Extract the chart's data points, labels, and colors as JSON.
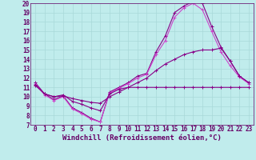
{
  "xlabel": "Windchill (Refroidissement éolien,°C)",
  "xlim": [
    -0.5,
    23.5
  ],
  "ylim": [
    7,
    20
  ],
  "xticks": [
    0,
    1,
    2,
    3,
    4,
    5,
    6,
    7,
    8,
    9,
    10,
    11,
    12,
    13,
    14,
    15,
    16,
    17,
    18,
    19,
    20,
    21,
    22,
    23
  ],
  "yticks": [
    7,
    8,
    9,
    10,
    11,
    12,
    13,
    14,
    15,
    16,
    17,
    18,
    19,
    20
  ],
  "background_color": "#c0ecec",
  "grid_color": "#a8d8d8",
  "lines": [
    {
      "x": [
        0,
        1,
        2,
        3,
        4,
        5,
        6,
        7,
        8,
        9,
        10,
        11,
        12,
        13,
        14,
        15,
        16,
        17,
        18,
        19,
        20,
        21,
        22,
        23
      ],
      "y": [
        11.5,
        10.3,
        9.7,
        10.1,
        8.8,
        8.3,
        7.7,
        7.3,
        10.5,
        11.0,
        11.5,
        12.2,
        12.5,
        14.8,
        16.5,
        19.0,
        19.7,
        20.2,
        20.0,
        17.5,
        15.3,
        13.8,
        12.2,
        11.5
      ],
      "color": "#880088",
      "lw": 0.8
    },
    {
      "x": [
        0,
        1,
        2,
        3,
        4,
        5,
        6,
        7,
        8,
        9,
        10,
        11,
        12,
        13,
        14,
        15,
        16,
        17,
        18,
        19,
        20,
        21,
        22,
        23
      ],
      "y": [
        11.4,
        10.2,
        9.6,
        10.0,
        8.7,
        8.2,
        7.6,
        7.3,
        10.4,
        10.9,
        11.4,
        12.0,
        12.4,
        14.5,
        16.0,
        18.5,
        19.5,
        20.0,
        19.3,
        17.0,
        14.8,
        13.3,
        12.1,
        11.4
      ],
      "color": "#cc44cc",
      "lw": 0.8
    },
    {
      "x": [
        0,
        1,
        2,
        3,
        4,
        5,
        6,
        7,
        8,
        9,
        10,
        11,
        12,
        13,
        14,
        15,
        16,
        17,
        18,
        19,
        20,
        21,
        22,
        23
      ],
      "y": [
        11.3,
        10.3,
        10.0,
        10.2,
        9.5,
        9.2,
        8.8,
        8.5,
        10.3,
        10.8,
        11.0,
        11.5,
        12.0,
        12.8,
        13.5,
        14.0,
        14.5,
        14.8,
        15.0,
        15.0,
        15.2,
        13.8,
        12.2,
        11.5
      ],
      "color": "#880088",
      "lw": 0.8
    },
    {
      "x": [
        0,
        1,
        2,
        3,
        4,
        5,
        6,
        7,
        8,
        9,
        10,
        11,
        12,
        13,
        14,
        15,
        16,
        17,
        18,
        19,
        20,
        21,
        22,
        23
      ],
      "y": [
        11.2,
        10.3,
        10.0,
        10.1,
        9.8,
        9.6,
        9.4,
        9.3,
        10.0,
        10.5,
        11.0,
        11.0,
        11.0,
        11.0,
        11.0,
        11.0,
        11.0,
        11.0,
        11.0,
        11.0,
        11.0,
        11.0,
        11.0,
        11.0
      ],
      "color": "#880088",
      "lw": 0.8
    }
  ],
  "marker": "+",
  "marker_size": 3,
  "marker_lw": 0.7,
  "font_color": "#660066",
  "tick_fontsize": 5.5,
  "label_fontsize": 6.5
}
